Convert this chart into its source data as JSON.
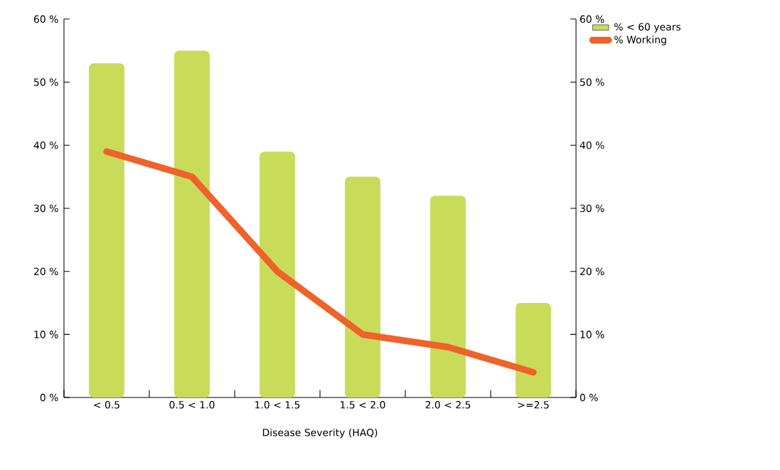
{
  "chart_data": {
    "type": "bar",
    "xlabel": "Disease Severity (HAQ)",
    "categories": [
      "< 0.5",
      "0.5 < 1.0",
      "1.0 < 1.5",
      "1.5 < 2.0",
      "2.0 < 2.5",
      ">=2.5"
    ],
    "series": [
      {
        "name": "% < 60 years",
        "color": "#c8dc5a",
        "values": [
          53,
          55,
          39,
          35,
          32,
          15
        ]
      },
      {
        "name": "% Working",
        "type": "line",
        "axis": "y2",
        "color": "#f0622a",
        "values": [
          39,
          35,
          20,
          10,
          8,
          4
        ]
      }
    ],
    "ylim": [
      0,
      60
    ],
    "yticks": [
      {
        "value": 0,
        "label": "0 %"
      },
      {
        "value": 10,
        "label": "10 %"
      },
      {
        "value": 20,
        "label": "20 %"
      },
      {
        "value": 30,
        "label": "30 %"
      },
      {
        "value": 40,
        "label": "40 %"
      },
      {
        "value": 50,
        "label": "50 %"
      },
      {
        "value": 60,
        "label": "60 %"
      }
    ],
    "y2lim": [
      0,
      60
    ],
    "y2ticks": [
      {
        "value": 0,
        "label": "0 %"
      },
      {
        "value": 10,
        "label": "10 %"
      },
      {
        "value": 20,
        "label": "20 %"
      },
      {
        "value": 30,
        "label": "30 %"
      },
      {
        "value": 40,
        "label": "40 %"
      },
      {
        "value": 50,
        "label": "50 %"
      },
      {
        "value": 60,
        "label": "60 %"
      }
    ],
    "legend": "top right",
    "grid": false,
    "marker": "none",
    "line_style": "solid"
  }
}
